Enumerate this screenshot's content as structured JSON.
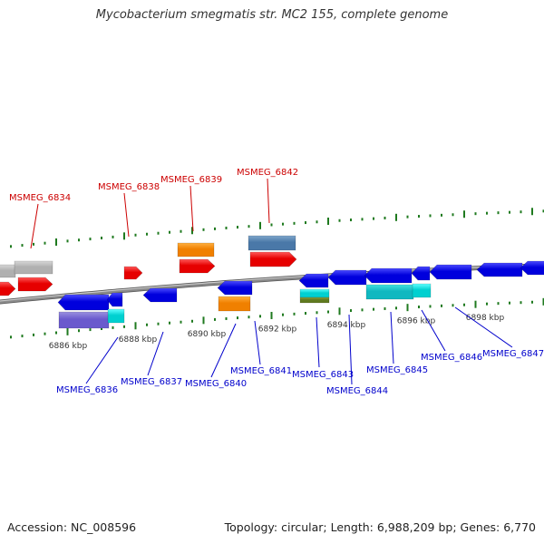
{
  "title": "Mycobacterium smegmatis str. MC2 155, complete genome",
  "accession": "Accession: NC_008596",
  "summary": "Topology: circular; Length: 6,988,209 bp; Genes: 6,770",
  "colors": {
    "backbone": "#8a8a8a",
    "ticks": "#1f7a1f",
    "label_forward": "#cc0000",
    "label_reverse": "#0000cc"
  },
  "scale_labels": [
    "6886 kbp",
    "6888 kbp",
    "6890 kbp",
    "6892 kbp",
    "6894 kbp",
    "6896 kbp",
    "6898 kbp"
  ],
  "genes_forward": [
    "MSMEG_6834",
    "MSMEG_6838",
    "MSMEG_6839",
    "MSMEG_6842"
  ],
  "genes_reverse": [
    "MSMEG_6836",
    "MSMEG_6837",
    "MSMEG_6840",
    "MSMEG_6841",
    "MSMEG_6843",
    "MSMEG_6844",
    "MSMEG_6845",
    "MSMEG_6846",
    "MSMEG_6847"
  ]
}
